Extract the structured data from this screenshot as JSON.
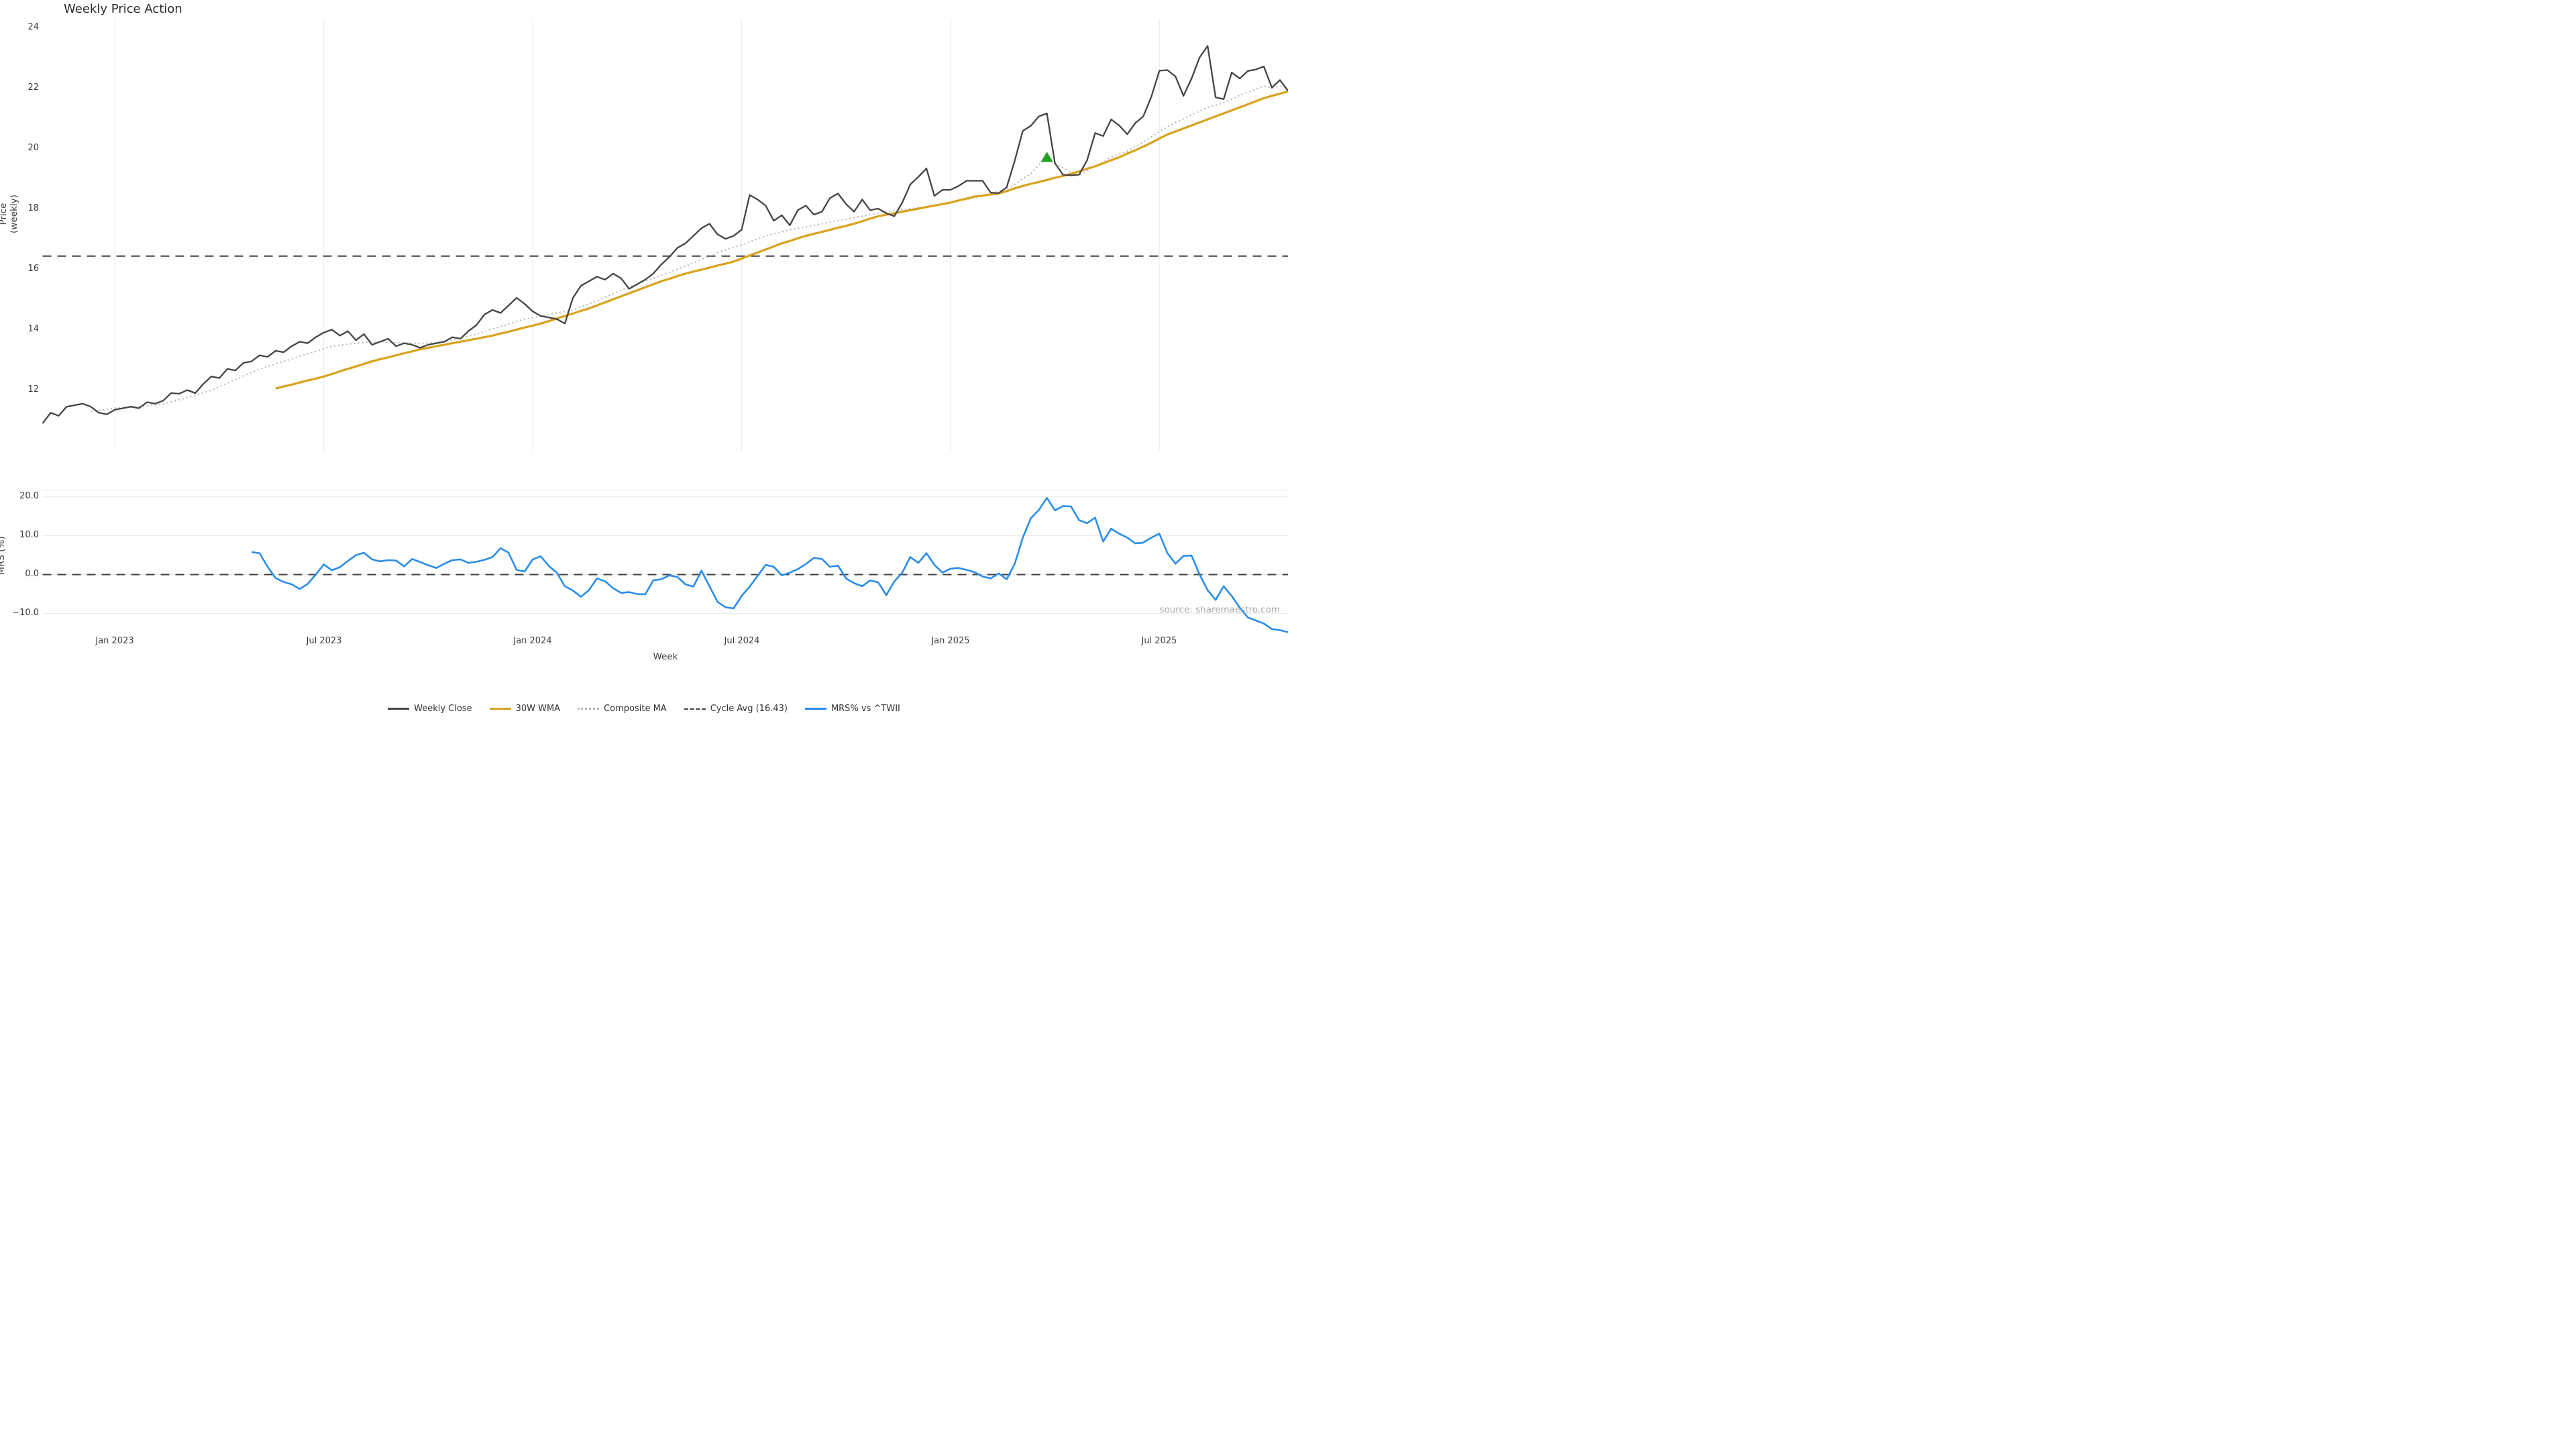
{
  "title": "Weekly Price Action",
  "source_note": "source: sharemaestro.com",
  "x_axis": {
    "label": "Week",
    "tick_labels": [
      "Jan 2023",
      "Jul 2023",
      "Jan 2024",
      "Jul 2024",
      "Jan 2025",
      "Jul 2025"
    ],
    "tick_weeks": [
      9,
      35,
      61,
      87,
      113,
      139
    ]
  },
  "legend": {
    "items": [
      {
        "label": "Weekly Close",
        "color": "#444444",
        "style": "solid"
      },
      {
        "label": "30W WMA",
        "color": "#d9a21b",
        "style": "solid"
      },
      {
        "label": "Composite MA",
        "color": "#b5b5b5",
        "style": "dotted"
      },
      {
        "label": "Cycle Avg (16.43)",
        "color": "#3f3f3f",
        "style": "dashed"
      },
      {
        "label": "MRS% vs ^TWII",
        "color": "#2a8de8",
        "style": "solid"
      }
    ]
  },
  "chart_data": [
    {
      "type": "line",
      "title": "Weekly Price Action",
      "ylabel": "Price (weekly)",
      "ytick_labels": [
        "24",
        "22",
        "20",
        "18",
        "16",
        "14",
        "12"
      ],
      "yticks": [
        24,
        22,
        20,
        18,
        16,
        14,
        12
      ],
      "ylim": [
        10.6,
        24.35
      ],
      "x_start_date": "Nov 2022",
      "x_end_date": "Oct 2025",
      "grid": "vertical light gridlines at Jan/Jul",
      "hline": {
        "name": "Cycle Avg",
        "value": 16.43,
        "style": "dashed",
        "color": "#3f3f3f"
      },
      "marker": {
        "shape": "triangle-up",
        "color": "#21a121",
        "week": 125,
        "value": 19.68
      },
      "series": [
        {
          "name": "Weekly Close",
          "color": "#444444",
          "style": "solid",
          "width": 2.3,
          "start_week": 0,
          "values": [
            10.9,
            11.25,
            11.15,
            11.45,
            11.5,
            11.55,
            11.45,
            11.25,
            11.2,
            11.35,
            11.4,
            11.45,
            11.4,
            11.6,
            11.55,
            11.65,
            11.9,
            11.88,
            12.0,
            11.9,
            12.2,
            12.45,
            12.4,
            12.7,
            12.65,
            12.9,
            12.95,
            13.15,
            13.1,
            13.3,
            13.25,
            13.45,
            13.6,
            13.55,
            13.75,
            13.9,
            14.0,
            13.8,
            13.95,
            13.65,
            13.85,
            13.5,
            13.6,
            13.7,
            13.45,
            13.55,
            13.5,
            13.4,
            13.5,
            13.55,
            13.6,
            13.75,
            13.7,
            13.95,
            14.15,
            14.5,
            14.65,
            14.55,
            14.8,
            15.05,
            14.85,
            14.6,
            14.45,
            14.4,
            14.35,
            14.2,
            15.05,
            15.45,
            15.6,
            15.75,
            15.65,
            15.85,
            15.7,
            15.35,
            15.5,
            15.65,
            15.85,
            16.15,
            16.4,
            16.7,
            16.85,
            17.1,
            17.35,
            17.5,
            17.15,
            17.0,
            17.1,
            17.3,
            18.45,
            18.3,
            18.1,
            17.6,
            17.78,
            17.45,
            17.95,
            18.1,
            17.8,
            17.9,
            18.35,
            18.5,
            18.15,
            17.9,
            18.3,
            17.95,
            18.0,
            17.85,
            17.75,
            18.2,
            18.8,
            19.05,
            19.33,
            18.42,
            18.62,
            18.62,
            18.75,
            18.92,
            18.92,
            18.92,
            18.53,
            18.51,
            18.71,
            19.59,
            20.57,
            20.74,
            21.05,
            21.15,
            19.5,
            19.12,
            19.1,
            19.12,
            19.6,
            20.5,
            20.4,
            20.95,
            20.75,
            20.46,
            20.83,
            21.05,
            21.7,
            22.56,
            22.58,
            22.37,
            21.73,
            22.3,
            23.0,
            23.38,
            21.68,
            21.62,
            22.5,
            22.3,
            22.55,
            22.6,
            22.7,
            22.0,
            22.25,
            21.9
          ]
        },
        {
          "name": "30W WMA",
          "color": "#d9a21b",
          "style": "solid",
          "width": 3.2,
          "start_week": 29,
          "values": [
            12.05,
            12.12,
            12.18,
            12.25,
            12.32,
            12.38,
            12.45,
            12.53,
            12.62,
            12.7,
            12.78,
            12.87,
            12.95,
            13.02,
            13.08,
            13.15,
            13.22,
            13.28,
            13.35,
            13.4,
            13.45,
            13.5,
            13.55,
            13.6,
            13.65,
            13.7,
            13.75,
            13.8,
            13.87,
            13.93,
            14.0,
            14.07,
            14.13,
            14.2,
            14.28,
            14.37,
            14.45,
            14.53,
            14.62,
            14.7,
            14.8,
            14.9,
            15.0,
            15.1,
            15.2,
            15.3,
            15.4,
            15.5,
            15.6,
            15.68,
            15.77,
            15.85,
            15.92,
            15.98,
            16.05,
            16.12,
            16.18,
            16.25,
            16.35,
            16.45,
            16.55,
            16.65,
            16.75,
            16.85,
            16.93,
            17.02,
            17.1,
            17.17,
            17.23,
            17.3,
            17.37,
            17.43,
            17.5,
            17.58,
            17.67,
            17.75,
            17.8,
            17.85,
            17.9,
            17.95,
            18.0,
            18.05,
            18.1,
            18.15,
            18.2,
            18.27,
            18.33,
            18.4,
            18.43,
            18.47,
            18.5,
            18.58,
            18.67,
            18.75,
            18.82,
            18.88,
            18.95,
            19.02,
            19.08,
            19.15,
            19.23,
            19.32,
            19.4,
            19.5,
            19.6,
            19.7,
            19.82,
            19.93,
            20.05,
            20.18,
            20.32,
            20.45,
            20.55,
            20.65,
            20.75,
            20.85,
            20.95,
            21.05,
            21.15,
            21.25,
            21.35,
            21.45,
            21.55,
            21.65,
            21.73,
            21.8,
            21.88
          ]
        },
        {
          "name": "Composite MA",
          "color": "#b5b5b5",
          "style": "dotted",
          "width": 2,
          "start_week": 6,
          "values": [
            11.3,
            11.33,
            11.36,
            11.4,
            11.42,
            11.43,
            11.45,
            11.48,
            11.51,
            11.55,
            11.61,
            11.68,
            11.75,
            11.83,
            11.91,
            12.0,
            12.11,
            12.23,
            12.35,
            12.47,
            12.58,
            12.7,
            12.78,
            12.87,
            12.95,
            13.03,
            13.12,
            13.2,
            13.28,
            13.37,
            13.45,
            13.48,
            13.52,
            13.55,
            13.57,
            13.58,
            13.6,
            13.58,
            13.57,
            13.55,
            13.55,
            13.55,
            13.55,
            13.58,
            13.62,
            13.65,
            13.72,
            13.78,
            13.85,
            13.93,
            14.02,
            14.1,
            14.18,
            14.27,
            14.35,
            14.4,
            14.45,
            14.5,
            14.55,
            14.6,
            14.65,
            14.75,
            14.85,
            14.95,
            15.07,
            15.18,
            15.3,
            15.4,
            15.5,
            15.6,
            15.7,
            15.8,
            15.9,
            16.0,
            16.1,
            16.2,
            16.32,
            16.43,
            16.55,
            16.63,
            16.72,
            16.8,
            16.9,
            17.0,
            17.1,
            17.17,
            17.23,
            17.3,
            17.35,
            17.4,
            17.45,
            17.5,
            17.55,
            17.6,
            17.65,
            17.7,
            17.75,
            17.8,
            17.85,
            17.9,
            17.93,
            17.97,
            18.0,
            18.03,
            18.07,
            18.1,
            18.15,
            18.2,
            18.25,
            18.3,
            18.35,
            18.4,
            18.5,
            18.57,
            18.65,
            18.8,
            19.0,
            19.15,
            19.45,
            19.68,
            19.5,
            19.35,
            19.2,
            19.1,
            19.25,
            19.4,
            19.55,
            19.7,
            19.8,
            19.9,
            20.05,
            20.2,
            20.37,
            20.55,
            20.7,
            20.85,
            20.97,
            21.1,
            21.22,
            21.35,
            21.42,
            21.5,
            21.62,
            21.75,
            21.85,
            21.95,
            22.05,
            22.0,
            22.05,
            22.0
          ]
        }
      ]
    },
    {
      "type": "line",
      "ylabel": "MRS (%)",
      "xlabel": "Week",
      "ytick_labels": [
        "20.0",
        "10.0",
        "0.0",
        "−10.0"
      ],
      "yticks": [
        20,
        10,
        0,
        -10
      ],
      "ylim": [
        -15.5,
        21.5
      ],
      "grid": "horizontal light gridlines",
      "hline": {
        "name": "zero line",
        "value": 0,
        "style": "dashed",
        "color": "#3f3f3f"
      },
      "series": [
        {
          "name": "MRS% vs ^TWII",
          "color": "#2a8de8",
          "style": "solid",
          "width": 2.6,
          "start_week": 26,
          "values": [
            5.8,
            5.5,
            2.0,
            -0.9,
            -1.9,
            -2.5,
            -3.7,
            -2.4,
            0.0,
            2.6,
            1.1,
            1.9,
            3.5,
            5.0,
            5.6,
            3.9,
            3.4,
            3.7,
            3.6,
            2.1,
            4.0,
            3.2,
            2.4,
            1.7,
            2.8,
            3.7,
            3.9,
            3.0,
            3.3,
            3.8,
            4.5,
            6.8,
            5.6,
            1.2,
            0.8,
            3.9,
            4.7,
            2.2,
            0.5,
            -3.0,
            -4.1,
            -5.7,
            -4.0,
            -1.0,
            -1.7,
            -3.5,
            -4.7,
            -4.5,
            -5.0,
            -5.1,
            -1.5,
            -1.2,
            -0.2,
            -0.6,
            -2.5,
            -3.1,
            1.0,
            -3.0,
            -7.0,
            -8.4,
            -8.7,
            -5.5,
            -3.1,
            -0.3,
            2.5,
            2.0,
            -0.2,
            0.5,
            1.4,
            2.7,
            4.3,
            4.0,
            2.0,
            2.3,
            -1.0,
            -2.2,
            -3.0,
            -1.5,
            -2.0,
            -5.3,
            -1.8,
            0.5,
            4.5,
            3.0,
            5.5,
            2.5,
            0.5,
            1.5,
            1.7,
            1.2,
            0.6,
            -0.5,
            -1.0,
            0.3,
            -1.2,
            2.8,
            9.5,
            14.5,
            16.6,
            19.7,
            16.5,
            17.6,
            17.5,
            14.0,
            13.2,
            14.6,
            8.5,
            11.8,
            10.5,
            9.5,
            8.0,
            8.2,
            9.5,
            10.5,
            5.5,
            2.8,
            4.8,
            4.9,
            0.0,
            -4.0,
            -6.5,
            -3.0,
            -5.5,
            -8.5,
            -11.0,
            -11.8,
            -12.6,
            -14.0,
            -14.3,
            -14.8
          ]
        }
      ]
    }
  ]
}
